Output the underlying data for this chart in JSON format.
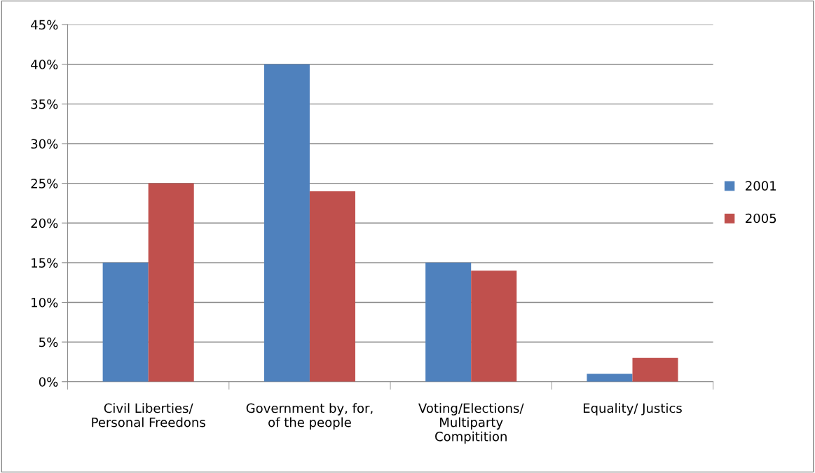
{
  "chart_data": {
    "type": "bar",
    "categories": [
      "Civil Liberties/\nPersonal Freedons",
      "Government by, for,\nof the people",
      "Voting/Elections/\nMultiparty\nCompitition",
      "Equality/ Justics"
    ],
    "series": [
      {
        "name": "2001",
        "color": "#4f81bd",
        "values": [
          15,
          40,
          15,
          1
        ]
      },
      {
        "name": "2005",
        "color": "#c0504d",
        "values": [
          25,
          24,
          14,
          3
        ]
      }
    ],
    "ylim": [
      0,
      45
    ],
    "yticks": [
      {
        "value": 0,
        "label": "0%"
      },
      {
        "value": 5,
        "label": "5%"
      },
      {
        "value": 10,
        "label": "10%"
      },
      {
        "value": 15,
        "label": "15%"
      },
      {
        "value": 20,
        "label": "20%"
      },
      {
        "value": 25,
        "label": "25%"
      },
      {
        "value": 30,
        "label": "30%"
      },
      {
        "value": 35,
        "label": "35%"
      },
      {
        "value": 40,
        "label": "40%"
      },
      {
        "value": 45,
        "label": "45%"
      }
    ],
    "grid": "y",
    "legend": "right"
  }
}
